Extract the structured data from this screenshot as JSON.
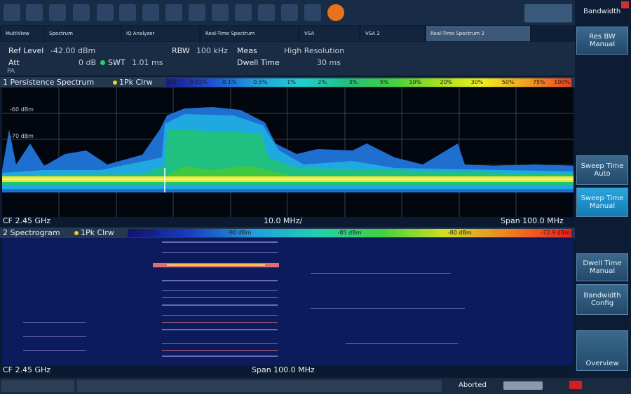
{
  "toolbar": {
    "title": "Bandwidth"
  },
  "tabs": [
    "MultiView",
    "Spectrum",
    "IQ Analyzer",
    "Real-Time Spectrum",
    "VSA",
    "VSA 2",
    "Real-Time Spectrum 2"
  ],
  "measurement_info": {
    "ref_level_label": "Ref Level",
    "ref_level": "-42.00 dBm",
    "rbw_label": "RBW",
    "rbw": "100 kHz",
    "meas_label": "Meas",
    "meas": "High Resolution",
    "att_label": "Att",
    "att": "0 dB",
    "swt_label": "SWT",
    "swt": "1.01 ms",
    "dwell_label": "Dwell Time",
    "dwell": "30 ms",
    "preamp": "PA"
  },
  "persistence": {
    "title": "1 Persistence Spectrum",
    "trace": "1Pk Clrw",
    "scale": [
      "0%",
      "0.01%",
      "0.1%",
      "0.5%",
      "1%",
      "2%",
      "3%",
      "5%",
      "10%",
      "20%",
      "30%",
      "50%",
      "75%",
      "100%"
    ],
    "y_labels": [
      "-60 dBm",
      "-70 dBm"
    ],
    "center": "CF 2.45 GHz",
    "division": "10.0 MHz/",
    "span": "Span 100.0 MHz"
  },
  "spectrogram": {
    "title": "2 Spectrogram",
    "trace": "1Pk Clrw",
    "scale": [
      "-97.2 dBm",
      "-90 dBm",
      "-85 dBm",
      "-80 dBm",
      "-72.9 dBm"
    ],
    "center": "CF 2.45 GHz",
    "span": "Span 100.0 MHz"
  },
  "softkeys": [
    "Res BW Manual",
    "Sweep Time Auto",
    "Sweep Time Manual",
    "Dwell Time Manual",
    "Bandwidth Config",
    "Overview"
  ],
  "status": {
    "state": "Aborted"
  }
}
